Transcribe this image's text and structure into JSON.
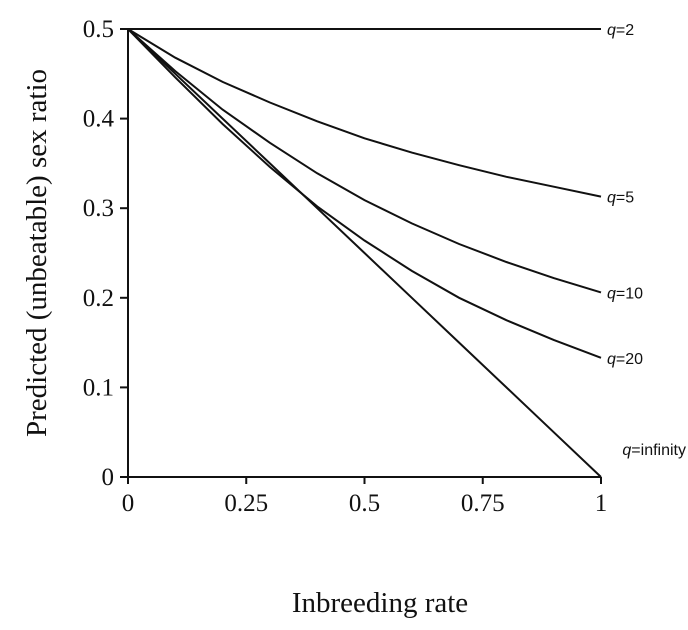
{
  "chart_data": {
    "type": "line",
    "title": "",
    "xlabel": "Inbreeding rate",
    "ylabel": "Predicted (unbeatable) sex ratio",
    "xlim": [
      0,
      1
    ],
    "ylim": [
      0,
      0.5
    ],
    "x_ticks": [
      0,
      0.25,
      0.5,
      0.75,
      1
    ],
    "x_tick_labels": [
      "0",
      "0.25",
      "0.5",
      "0.75",
      "1"
    ],
    "y_ticks": [
      0,
      0.1,
      0.2,
      0.3,
      0.4,
      0.5
    ],
    "y_tick_labels": [
      "0",
      "0.1",
      "0.2",
      "0.3",
      "0.4",
      "0.5"
    ],
    "grid": false,
    "legend": "none",
    "line_color": "#111111",
    "x": [
      0,
      0.1,
      0.2,
      0.3,
      0.4,
      0.5,
      0.6,
      0.7,
      0.8,
      0.9,
      1.0
    ],
    "series": [
      {
        "name": "q=2",
        "label_q": "q",
        "label_value": "=2",
        "values": [
          0.5,
          0.5,
          0.5,
          0.5,
          0.5,
          0.5,
          0.5,
          0.5,
          0.5,
          0.5,
          0.5
        ]
      },
      {
        "name": "q=5",
        "label_q": "q",
        "label_value": "=5",
        "values": [
          0.5,
          0.468,
          0.441,
          0.418,
          0.397,
          0.378,
          0.362,
          0.348,
          0.335,
          0.324,
          0.313
        ]
      },
      {
        "name": "q=10",
        "label_q": "q",
        "label_value": "=10",
        "values": [
          0.5,
          0.453,
          0.41,
          0.373,
          0.339,
          0.309,
          0.283,
          0.26,
          0.24,
          0.222,
          0.206
        ]
      },
      {
        "name": "q=20",
        "label_q": "q",
        "label_value": "=20",
        "values": [
          0.5,
          0.446,
          0.394,
          0.346,
          0.302,
          0.264,
          0.23,
          0.2,
          0.175,
          0.153,
          0.133
        ]
      },
      {
        "name": "q=infinity",
        "label_q": "q",
        "label_value": "=infinity",
        "values": [
          0.5,
          0.45,
          0.4,
          0.35,
          0.3,
          0.25,
          0.2,
          0.15,
          0.1,
          0.05,
          0.0
        ]
      }
    ]
  }
}
